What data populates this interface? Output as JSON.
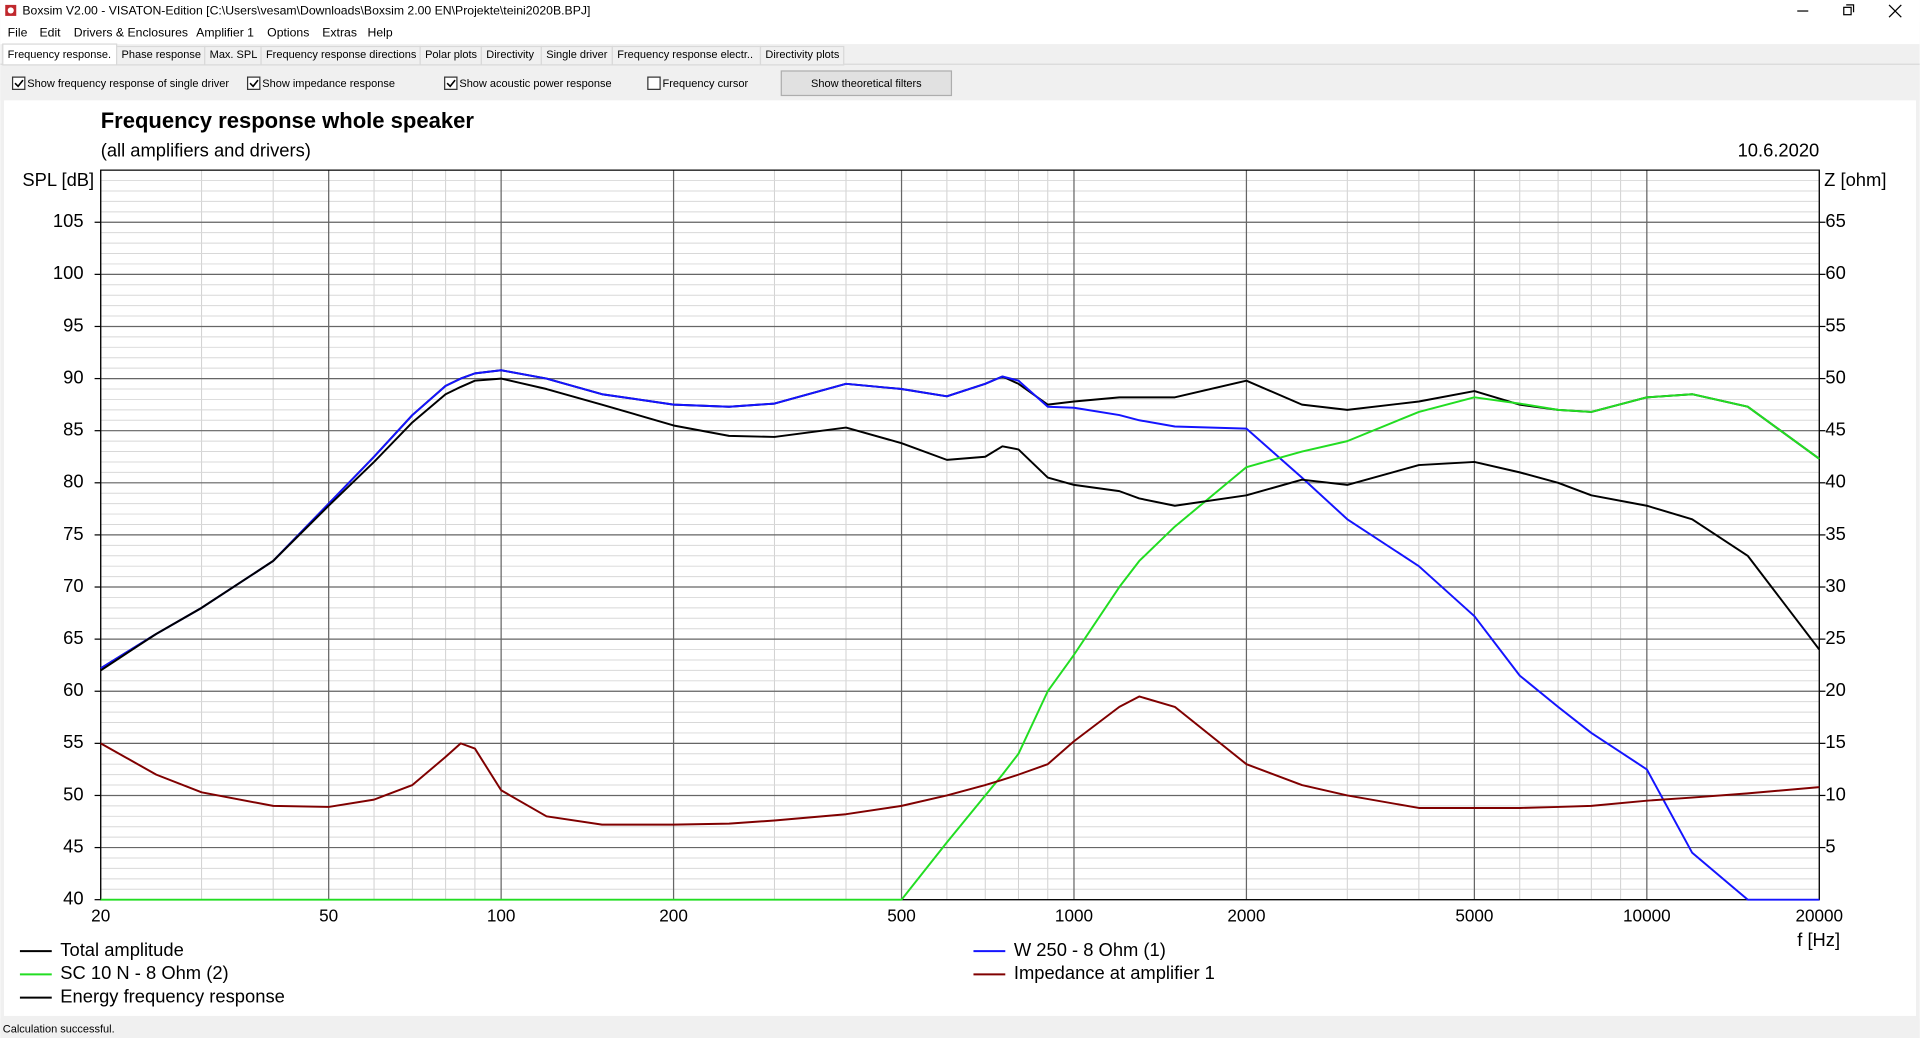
{
  "window": {
    "title": "Boxsim V2.00 - VISATON-Edition [C:\\Users\\vesam\\Downloads\\Boxsim 2.00 EN\\Projekte\\teini2020B.BPJ]"
  },
  "menu": [
    "File",
    "Edit",
    "Drivers & Enclosures",
    "Amplifier 1",
    "Options",
    "Extras",
    "Help"
  ],
  "tabs": [
    "Frequency response.",
    "Phase response",
    "Max. SPL",
    "Frequency response directions",
    "Polar plots",
    "Directivity",
    "Single driver",
    "Frequency response electr..",
    "Directivity plots"
  ],
  "toolbar": {
    "checkboxes": [
      {
        "label": "Show frequency response of single driver",
        "checked": true
      },
      {
        "label": "Show impedance response",
        "checked": true
      },
      {
        "label": "Show acoustic power response",
        "checked": true
      },
      {
        "label": "Frequency cursor",
        "checked": false
      }
    ],
    "button": "Show theoretical filters"
  },
  "status": "Calculation successful.",
  "chart_data": {
    "type": "line",
    "title": "Frequency response whole speaker",
    "subtitle": "(all amplifiers and drivers)",
    "date": "10.6.2020",
    "ylabel": "SPL [dB]",
    "y2label": "Z [ohm]",
    "xlabel": "f [Hz]",
    "xlog": true,
    "grid": true,
    "minor_grid": true,
    "xlim": [
      20,
      20000
    ],
    "xticks": [
      20,
      50,
      100,
      200,
      500,
      1000,
      2000,
      5000,
      10000,
      20000
    ],
    "ylim": [
      40,
      110
    ],
    "yticks": [
      40,
      45,
      50,
      55,
      60,
      65,
      70,
      75,
      80,
      85,
      90,
      95,
      100,
      105
    ],
    "y2lim": [
      0,
      70
    ],
    "y2ticks": [
      5,
      10,
      15,
      20,
      25,
      30,
      35,
      40,
      45,
      50,
      55,
      60,
      65
    ],
    "x": [
      20,
      25,
      30,
      40,
      50,
      60,
      70,
      80,
      85,
      90,
      100,
      120,
      150,
      200,
      250,
      300,
      400,
      500,
      600,
      700,
      750,
      800,
      900,
      1000,
      1200,
      1300,
      1500,
      2000,
      2500,
      3000,
      4000,
      5000,
      6000,
      7000,
      8000,
      10000,
      12000,
      15000,
      20000
    ],
    "series": [
      {
        "name": "Total amplitude",
        "color": "#000000",
        "values": [
          62.2,
          65.5,
          68,
          72.5,
          78,
          82.5,
          86.5,
          89.3,
          90,
          90.5,
          90.8,
          90,
          88.5,
          87.5,
          87.3,
          87.6,
          89.5,
          89,
          88.3,
          89.5,
          90.2,
          89.5,
          87.5,
          87.8,
          88.2,
          88.2,
          88.2,
          89.8,
          87.5,
          87,
          87.8,
          88.8,
          87.5,
          87,
          86.8,
          88.2,
          88.5,
          87.3,
          82.3
        ]
      },
      {
        "name": "W 250 - 8 Ohm (1)",
        "color": "#1414ff",
        "values": [
          62.2,
          65.5,
          68,
          72.5,
          78,
          82.5,
          86.5,
          89.3,
          90,
          90.5,
          90.8,
          90,
          88.5,
          87.5,
          87.3,
          87.6,
          89.5,
          89,
          88.3,
          89.5,
          90.2,
          89.8,
          87.3,
          87.2,
          86.5,
          86,
          85.4,
          85.2,
          80.5,
          76.5,
          72,
          67.2,
          61.5,
          58.5,
          56,
          52.5,
          44.5,
          40,
          40
        ]
      },
      {
        "name": "SC 10 N - 8 Ohm (2)",
        "color": "#22dd22",
        "values": [
          40,
          40,
          40,
          40,
          40,
          40,
          40,
          40,
          40,
          40,
          40,
          40,
          40,
          40,
          40,
          40,
          40,
          40,
          45.5,
          50,
          52,
          54,
          60,
          63.5,
          70,
          72.5,
          75.8,
          81.5,
          83,
          84,
          86.8,
          88.2,
          87.6,
          87,
          86.8,
          88.2,
          88.5,
          87.3,
          82.3
        ]
      },
      {
        "name": "Impedance at amplifier 1",
        "color": "#800000",
        "axis": "y2",
        "values": [
          15,
          12,
          10.3,
          9,
          8.9,
          9.6,
          11,
          13.7,
          15,
          14.5,
          10.5,
          8,
          7.2,
          7.2,
          7.3,
          7.6,
          8.2,
          9,
          10,
          11,
          11.5,
          12,
          13,
          15.2,
          18.5,
          19.5,
          18.5,
          13,
          11,
          10,
          8.8,
          8.8,
          8.8,
          8.9,
          9,
          9.5,
          9.8,
          10.2,
          10.8
        ]
      },
      {
        "name": "Energy frequency response",
        "color": "#000000",
        "values": [
          62,
          65.5,
          68,
          72.5,
          77.8,
          82,
          85.8,
          88.5,
          89.2,
          89.8,
          90,
          89,
          87.5,
          85.5,
          84.5,
          84.4,
          85.3,
          83.8,
          82.2,
          82.5,
          83.5,
          83.2,
          80.5,
          79.8,
          79.2,
          78.5,
          77.8,
          78.8,
          80.3,
          79.8,
          81.7,
          82,
          81,
          80,
          78.8,
          77.8,
          76.5,
          73,
          64
        ]
      }
    ]
  }
}
